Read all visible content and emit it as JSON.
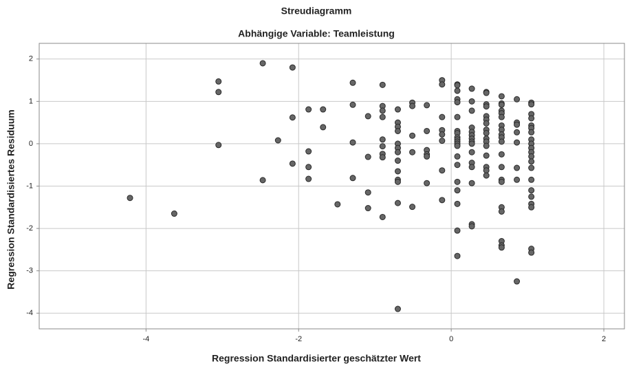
{
  "chart_data": {
    "type": "scatter",
    "title": "Streudiagramm",
    "subtitle": "Abhängige Variable: Teamleistung",
    "x_label": "Regression Standardisierter geschätzter Wert",
    "y_label": "Regression Standardisiertes Residuum",
    "color": "#666666",
    "grid": true,
    "xlim": [
      -5.4,
      2.27
    ],
    "ylim": [
      -4.37,
      2.37
    ],
    "xticks": [
      -4,
      -2,
      0,
      2
    ],
    "yticks": [
      -4,
      -3,
      -2,
      -1,
      0,
      1,
      2
    ],
    "x": [
      -4.21,
      -3.63,
      -3.05,
      -3.05,
      -3.05,
      -2.47,
      -2.47,
      -2.27,
      -2.08,
      -2.08,
      -2.08,
      -1.87,
      -1.87,
      -1.87,
      -1.87,
      -1.68,
      -1.68,
      -1.49,
      -1.29,
      -1.29,
      -1.29,
      -1.29,
      -1.09,
      -1.09,
      -1.09,
      -1.09,
      -0.9,
      -0.9,
      -0.9,
      -0.9,
      -0.9,
      -0.9,
      -0.9,
      -0.9,
      -0.9,
      -0.7,
      -0.7,
      -0.7,
      -0.7,
      -0.7,
      -0.7,
      -0.7,
      -0.7,
      -0.7,
      -0.7,
      -0.7,
      -0.7,
      -0.7,
      -0.51,
      -0.51,
      -0.51,
      -0.51,
      -0.51,
      -0.32,
      -0.32,
      -0.32,
      -0.32,
      -0.32,
      -0.32,
      -0.12,
      -0.12,
      -0.12,
      -0.12,
      -0.12,
      -0.12,
      -0.12,
      -0.12,
      0.08,
      0.08,
      0.08,
      0.08,
      0.08,
      0.08,
      0.08,
      0.08,
      0.08,
      0.08,
      0.08,
      0.08,
      0.08,
      0.08,
      0.08,
      0.08,
      0.08,
      0.08,
      0.08,
      0.08,
      0.27,
      0.27,
      0.27,
      0.27,
      0.27,
      0.27,
      0.27,
      0.27,
      0.27,
      0.27,
      0.27,
      0.27,
      0.27,
      0.27,
      0.27,
      0.46,
      0.46,
      0.46,
      0.46,
      0.46,
      0.46,
      0.46,
      0.46,
      0.46,
      0.46,
      0.46,
      0.46,
      0.46,
      0.46,
      0.46,
      0.46,
      0.66,
      0.66,
      0.66,
      0.66,
      0.66,
      0.66,
      0.66,
      0.66,
      0.66,
      0.66,
      0.66,
      0.66,
      0.66,
      0.66,
      0.66,
      0.66,
      0.66,
      0.66,
      0.66,
      0.66,
      0.86,
      0.86,
      0.86,
      0.86,
      0.86,
      0.86,
      0.86,
      0.86,
      1.05,
      1.05,
      1.05,
      1.05,
      1.05,
      1.05,
      1.05,
      1.05,
      1.05,
      1.05,
      1.05,
      1.05,
      1.05,
      1.05,
      1.05,
      1.05,
      1.05,
      1.05,
      1.05,
      1.05,
      1.05
    ],
    "values": [
      -1.28,
      -1.65,
      1.47,
      1.22,
      -0.03,
      1.9,
      -0.86,
      0.08,
      1.8,
      0.62,
      -0.47,
      0.81,
      -0.18,
      -0.55,
      -0.83,
      0.81,
      0.39,
      -1.43,
      1.44,
      0.92,
      0.03,
      -0.81,
      0.65,
      -0.31,
      -1.15,
      -1.52,
      1.39,
      0.89,
      0.78,
      0.63,
      0.1,
      -0.06,
      -0.24,
      -0.32,
      -1.73,
      0.81,
      0.5,
      0.4,
      0.3,
      0.0,
      -0.1,
      -0.2,
      -0.4,
      -0.65,
      -0.85,
      -0.9,
      -1.4,
      -3.9,
      0.97,
      0.89,
      0.19,
      -0.2,
      -1.49,
      0.91,
      0.3,
      -0.15,
      -0.25,
      -0.3,
      -0.93,
      1.5,
      1.4,
      0.63,
      0.32,
      0.22,
      0.07,
      -0.63,
      -1.33,
      1.4,
      1.38,
      1.25,
      1.05,
      0.98,
      0.63,
      0.3,
      0.25,
      0.15,
      0.1,
      0.05,
      0.0,
      -0.05,
      -0.3,
      -0.5,
      -0.9,
      -1.1,
      -1.42,
      -2.05,
      -2.65,
      1.3,
      1.0,
      0.78,
      0.38,
      0.28,
      0.2,
      0.12,
      0.05,
      0.0,
      -0.2,
      -0.45,
      -0.55,
      -0.93,
      -1.9,
      -1.95,
      1.22,
      1.2,
      0.93,
      0.88,
      0.65,
      0.57,
      0.48,
      0.33,
      0.25,
      0.12,
      0.05,
      -0.05,
      -0.28,
      -0.55,
      -0.63,
      -0.75,
      1.12,
      0.95,
      0.92,
      0.78,
      0.72,
      0.63,
      0.43,
      0.33,
      0.22,
      0.15,
      0.05,
      -0.25,
      -0.55,
      -0.85,
      -0.9,
      -1.5,
      -1.6,
      -2.3,
      -2.4,
      -2.45,
      1.05,
      0.5,
      0.45,
      0.27,
      0.03,
      -0.57,
      -0.85,
      -3.25,
      0.97,
      0.93,
      0.7,
      0.6,
      0.43,
      0.37,
      0.27,
      0.1,
      0.0,
      -0.1,
      -0.2,
      -0.3,
      -0.42,
      -0.57,
      -0.85,
      -1.1,
      -1.25,
      -1.42,
      -1.5,
      -2.48,
      -2.57
    ]
  }
}
